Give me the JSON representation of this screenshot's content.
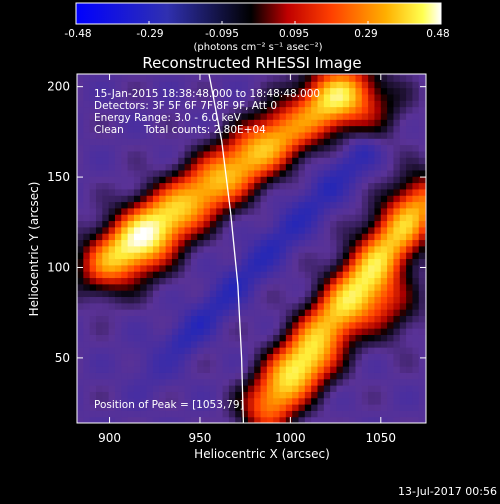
{
  "colorbar": {
    "ticks": [
      "-0.48",
      "-0.29",
      "-0.095",
      "0.095",
      "0.29",
      "0.48"
    ],
    "unit_label": "(photons cm⁻² s⁻¹ asec⁻²)"
  },
  "title": "Reconstructed RHESSI Image",
  "info_lines": [
    "15-Jan-2015 18:38:48.000 to 18:48:48.000",
    "Detectors: 3F 5F 6F 7F 8F 9F, Att 0",
    "Energy Range: 3.0 - 6.0 keV",
    "Clean      Total counts: 2.80E+04"
  ],
  "peak_label": "Position of Peak = [1053,79]",
  "footer_date": "13-Jul-2017 00:56",
  "chart_data": {
    "type": "heatmap",
    "title": "Reconstructed RHESSI Image",
    "xlabel": "Heliocentric X (arcsec)",
    "ylabel": "Heliocentric Y (arcsec)",
    "xlim": [
      882,
      1075
    ],
    "ylim": [
      14,
      207
    ],
    "xticks": [
      900,
      950,
      1000,
      1050
    ],
    "yticks": [
      50,
      100,
      150,
      200
    ],
    "colorscale": [
      "#0000ff",
      "#2020c0",
      "#5a2a9c",
      "#000000",
      "#cc0000",
      "#ff5000",
      "#ffb000",
      "#ffff40",
      "#ffffff"
    ],
    "value_range": [
      -0.48,
      0.48
    ],
    "peak": [
      1053,
      79
    ],
    "limb_curve": [
      [
        955,
        207
      ],
      [
        962,
        170
      ],
      [
        967,
        130
      ],
      [
        971,
        90
      ],
      [
        973,
        50
      ],
      [
        974,
        14
      ]
    ]
  }
}
